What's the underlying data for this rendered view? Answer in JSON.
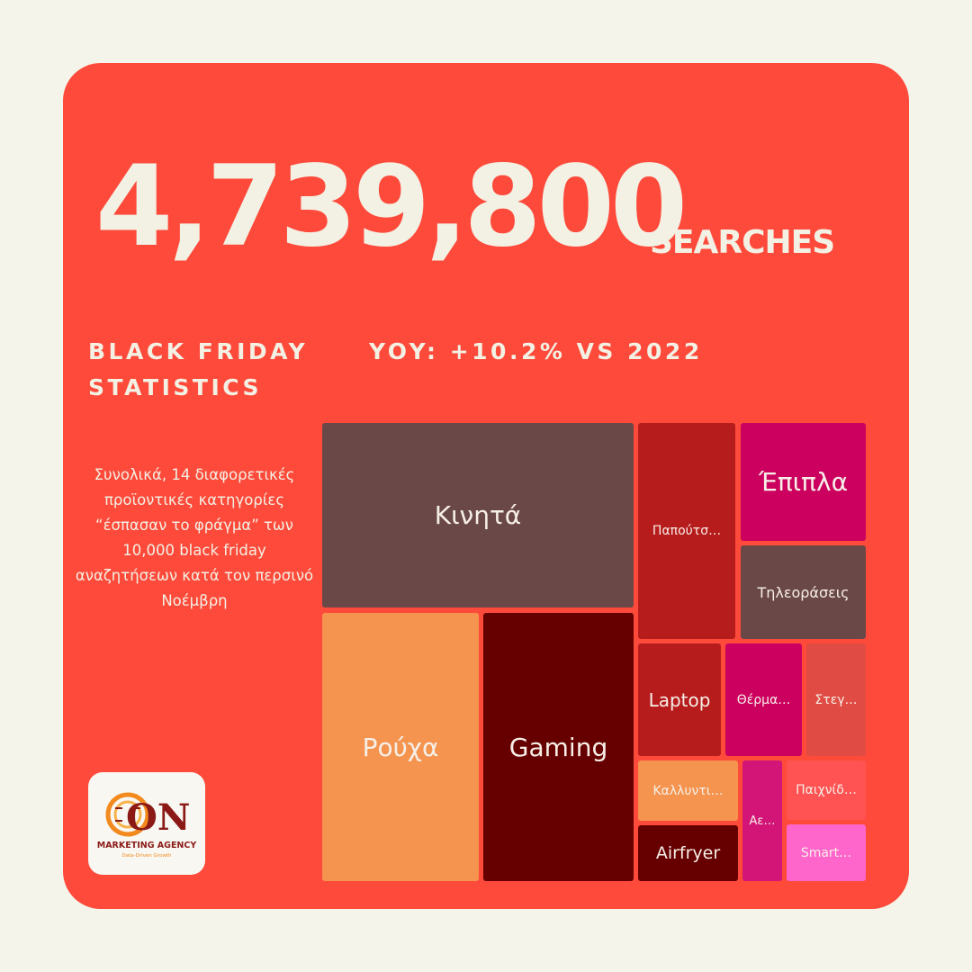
{
  "headline": {
    "number": "4,739,800",
    "unit": "SEARCHES"
  },
  "section_title": "BLACK FRIDAY STATISTICS",
  "yoy": "YOY: +10.2% VS 2022",
  "description": "Συνολικά, 14 διαφορετικές προϊοντικές κατηγορίες “έσπασαν το φράγμα” των 10,000 black friday αναζητήσεων κατά τον περσινό Νοέμβρη",
  "logo": {
    "wordmark": "ON",
    "name": "MARKETING AGENCY",
    "tagline": "Data-Driven Growth",
    "accent": "#f28a1e",
    "dark": "#8b1a17"
  },
  "chart_data": {
    "type": "treemap",
    "categories": [
      {
        "label": "Κινητά",
        "color": "#6b4848"
      },
      {
        "label": "Ρούχα",
        "color": "#f4944f"
      },
      {
        "label": "Gaming",
        "color": "#660000"
      },
      {
        "label": "Παπούτσ…",
        "color": "#b71c1c"
      },
      {
        "label": "Έπιπλα",
        "color": "#cc005f"
      },
      {
        "label": "Τηλεοράσεις",
        "color": "#6b4848"
      },
      {
        "label": "Laptop",
        "color": "#b71c1c"
      },
      {
        "label": "Θέρμα…",
        "color": "#cc005f"
      },
      {
        "label": "Στεγ…",
        "color": "#e04c44"
      },
      {
        "label": "Καλλυντι…",
        "color": "#f4944f"
      },
      {
        "label": "Airfryer",
        "color": "#660000"
      },
      {
        "label": "Αε…",
        "color": "#d31577"
      },
      {
        "label": "Παιχνίδ…",
        "color": "#ff5252"
      },
      {
        "label": "Smart…",
        "color": "#ff66cc"
      }
    ]
  }
}
